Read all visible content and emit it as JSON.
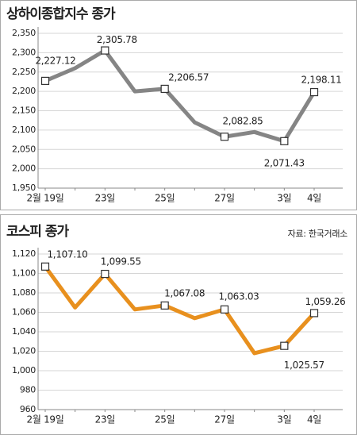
{
  "chart_data": [
    {
      "type": "line",
      "title": "상하이종합지수 종가",
      "categories": [
        "2월 19일",
        null,
        "23일",
        null,
        "25일",
        null,
        "27일",
        null,
        "3일",
        "4일"
      ],
      "values": [
        2227.12,
        2260,
        2305.78,
        2200,
        2206.57,
        2120,
        2082.85,
        2095,
        2071.43,
        2198.11
      ],
      "value_labels": [
        "2,227.12",
        null,
        "2,305.78",
        null,
        "2,206.57",
        null,
        "2,082.85",
        null,
        "2,071.43",
        "2,198.11"
      ],
      "color": "#858585",
      "ylim": [
        1950,
        2350
      ],
      "yticks": [
        {
          "value": 1950,
          "label": "1,950"
        },
        {
          "value": 2000,
          "label": "2,000"
        },
        {
          "value": 2050,
          "label": "2,050"
        },
        {
          "value": 2100,
          "label": "2,100"
        },
        {
          "value": 2150,
          "label": "2,150"
        },
        {
          "value": 2200,
          "label": "2,200"
        },
        {
          "value": 2250,
          "label": "2,250"
        },
        {
          "value": 2300,
          "label": "2,300"
        },
        {
          "value": 2350,
          "label": "2,350"
        }
      ],
      "grid": true
    },
    {
      "type": "line",
      "title": "코스피 종가",
      "source": "자료: 한국거래소",
      "categories": [
        "2월 19일",
        null,
        "23일",
        null,
        "25일",
        null,
        "27일",
        null,
        "3일",
        "4일"
      ],
      "values": [
        1107.1,
        1065,
        1099.55,
        1063,
        1067.08,
        1054,
        1063.03,
        1018,
        1025.57,
        1059.26
      ],
      "value_labels": [
        "1,107.10",
        null,
        "1,099.55",
        null,
        "1,067.08",
        null,
        "1,063.03",
        null,
        "1,025.57",
        "1,059.26"
      ],
      "color": "#e8901e",
      "ylim": [
        960,
        1120
      ],
      "yticks": [
        960,
        980,
        {
          "value": 1000,
          "label": "1,000"
        },
        {
          "value": 1020,
          "label": "1,020"
        },
        {
          "value": 1040,
          "label": "1,040"
        },
        {
          "value": 1060,
          "label": "1,060"
        },
        {
          "value": 1080,
          "label": "1,080"
        },
        {
          "value": 1100,
          "label": "1,100"
        },
        {
          "value": 1120,
          "label": "1,120"
        }
      ],
      "grid": true
    }
  ]
}
